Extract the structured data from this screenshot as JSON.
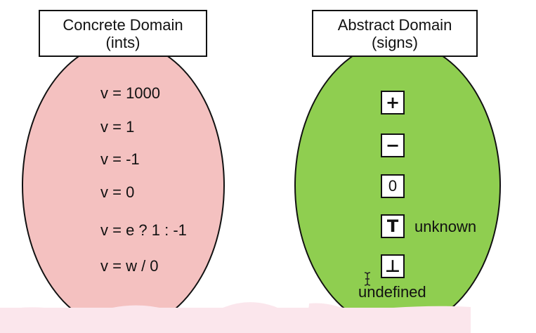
{
  "concrete": {
    "title": "Concrete Domain",
    "subtitle": "(ints)",
    "statements": [
      "v = 1000",
      "v = 1",
      "v = -1",
      "v = 0",
      "v = e ? 1 : -1",
      "v = w / 0"
    ],
    "color": "#f4c1c0"
  },
  "abstract": {
    "title": "Abstract Domain",
    "subtitle": "(signs)",
    "signs": {
      "plus": "+",
      "minus": "−",
      "zero": "0",
      "top": "T",
      "bottom": "⊥"
    },
    "top_label": "unknown",
    "bottom_label": "undefined",
    "color": "#8fce50"
  },
  "icons": {
    "cursor": "text-cursor-icon"
  }
}
